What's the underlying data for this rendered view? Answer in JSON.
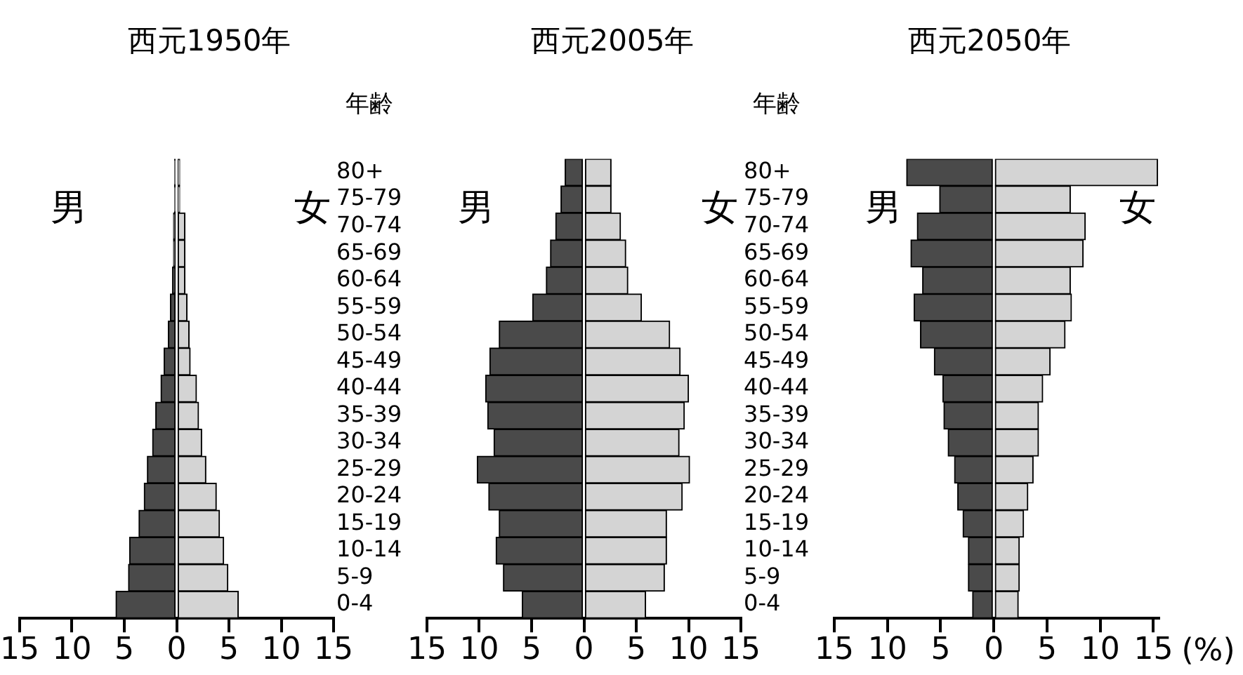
{
  "chart_data": [
    {
      "type": "bar",
      "title": "西元1950年",
      "ylabel": "年齢",
      "orientation": "horizontal",
      "stacked": true,
      "categories": [
        "80+",
        "75-79",
        "70-74",
        "65-69",
        "60-64",
        "55-59",
        "50-54",
        "45-49",
        "40-44",
        "35-39",
        "30-34",
        "25-29",
        "20-24",
        "15-19",
        "10-14",
        "5-9",
        "0-4"
      ],
      "series": [
        {
          "color": "#4a4a4a",
          "values": [
            -0.2,
            -0.2,
            -0.3,
            -0.3,
            -0.4,
            -0.6,
            -0.8,
            -1.2,
            -1.5,
            -2.0,
            -2.3,
            -2.8,
            -3.1,
            -3.6,
            -4.5,
            -4.6,
            -5.8
          ]
        },
        {
          "color": "#d4d4d4",
          "values": [
            0.3,
            0.3,
            0.8,
            0.8,
            0.8,
            1.0,
            1.2,
            1.3,
            1.9,
            2.1,
            2.4,
            2.8,
            3.8,
            4.1,
            4.5,
            4.9,
            5.9
          ]
        }
      ],
      "xlim": [
        -15,
        15
      ],
      "xticks": [
        {
          "value": -15,
          "label": "15"
        },
        {
          "value": -10,
          "label": "10"
        },
        {
          "value": -5,
          "label": "5"
        },
        0,
        5,
        10,
        15
      ],
      "annotations": [
        "男",
        "女"
      ],
      "grid": false,
      "legend": false
    },
    {
      "type": "bar",
      "title": "西元2005年",
      "ylabel": "年齢",
      "orientation": "horizontal",
      "stacked": true,
      "categories": [
        "80+",
        "75-79",
        "70-74",
        "65-69",
        "60-64",
        "55-59",
        "50-54",
        "45-49",
        "40-44",
        "35-39",
        "30-34",
        "25-29",
        "20-24",
        "15-19",
        "10-14",
        "5-9",
        "0-4"
      ],
      "series": [
        {
          "color": "#4a4a4a",
          "values": [
            -1.8,
            -2.2,
            -2.7,
            -3.2,
            -3.6,
            -4.9,
            -8.1,
            -9.0,
            -9.4,
            -9.2,
            -8.6,
            -10.2,
            -9.1,
            -8.1,
            -8.4,
            -7.7,
            -5.9
          ]
        },
        {
          "color": "#d4d4d4",
          "values": [
            2.6,
            2.6,
            3.5,
            4.0,
            4.2,
            5.5,
            8.2,
            9.2,
            10.0,
            9.6,
            9.1,
            10.1,
            9.4,
            7.9,
            7.9,
            7.7,
            5.9
          ]
        }
      ],
      "xlim": [
        -15,
        15
      ],
      "xticks": [
        {
          "value": -15,
          "label": "15"
        },
        {
          "value": -10,
          "label": "10"
        },
        {
          "value": -5,
          "label": "5"
        },
        0,
        5,
        10,
        15
      ],
      "annotations": [
        "男",
        "女"
      ],
      "grid": false,
      "legend": false
    },
    {
      "type": "bar",
      "title": "西元2050年",
      "xlabel": "(%)",
      "orientation": "horizontal",
      "stacked": true,
      "tick_labels": "x",
      "categories": [
        null,
        null,
        null,
        null,
        null,
        null,
        null,
        null,
        null,
        null,
        null,
        null,
        null,
        null,
        null,
        null,
        null
      ],
      "series": [
        {
          "color": "#4a4a4a",
          "values": [
            -8.2,
            -5.1,
            -7.2,
            -7.8,
            -6.7,
            -7.5,
            -6.9,
            -5.6,
            -4.8,
            -4.7,
            -4.3,
            -3.7,
            -3.4,
            -2.9,
            -2.4,
            -2.4,
            -2.0
          ]
        },
        {
          "color": "#d4d4d4",
          "values": [
            15.4,
            7.2,
            8.6,
            8.4,
            7.2,
            7.3,
            6.7,
            5.3,
            4.6,
            4.2,
            4.2,
            3.7,
            3.2,
            2.8,
            2.4,
            2.4,
            2.3
          ]
        }
      ],
      "xlim": [
        -15,
        15.5
      ],
      "xticks": [
        {
          "value": -15,
          "label": "15"
        },
        {
          "value": -10,
          "label": "10"
        },
        {
          "value": -5,
          "label": "5"
        },
        0,
        5,
        10,
        15
      ],
      "annotations": [
        "男",
        "女"
      ],
      "grid": false,
      "legend": false
    }
  ]
}
